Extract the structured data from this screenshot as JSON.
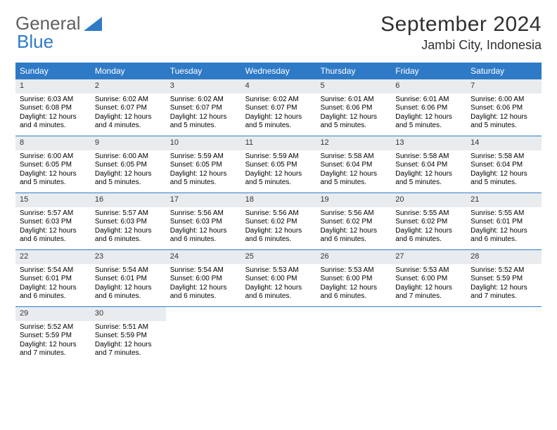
{
  "logo": {
    "text1": "General",
    "text2": "Blue"
  },
  "header": {
    "month": "September 2024",
    "location": "Jambi City, Indonesia"
  },
  "colors": {
    "accent": "#2f7ac6",
    "header_bg": "#2f7ac6",
    "num_bg": "#e9ecef",
    "text": "#000000"
  },
  "columns": [
    "Sunday",
    "Monday",
    "Tuesday",
    "Wednesday",
    "Thursday",
    "Friday",
    "Saturday"
  ],
  "weeks": [
    [
      {
        "n": "1",
        "sr": "Sunrise: 6:03 AM",
        "ss": "Sunset: 6:08 PM",
        "d1": "Daylight: 12 hours",
        "d2": "and 4 minutes."
      },
      {
        "n": "2",
        "sr": "Sunrise: 6:02 AM",
        "ss": "Sunset: 6:07 PM",
        "d1": "Daylight: 12 hours",
        "d2": "and 4 minutes."
      },
      {
        "n": "3",
        "sr": "Sunrise: 6:02 AM",
        "ss": "Sunset: 6:07 PM",
        "d1": "Daylight: 12 hours",
        "d2": "and 5 minutes."
      },
      {
        "n": "4",
        "sr": "Sunrise: 6:02 AM",
        "ss": "Sunset: 6:07 PM",
        "d1": "Daylight: 12 hours",
        "d2": "and 5 minutes."
      },
      {
        "n": "5",
        "sr": "Sunrise: 6:01 AM",
        "ss": "Sunset: 6:06 PM",
        "d1": "Daylight: 12 hours",
        "d2": "and 5 minutes."
      },
      {
        "n": "6",
        "sr": "Sunrise: 6:01 AM",
        "ss": "Sunset: 6:06 PM",
        "d1": "Daylight: 12 hours",
        "d2": "and 5 minutes."
      },
      {
        "n": "7",
        "sr": "Sunrise: 6:00 AM",
        "ss": "Sunset: 6:06 PM",
        "d1": "Daylight: 12 hours",
        "d2": "and 5 minutes."
      }
    ],
    [
      {
        "n": "8",
        "sr": "Sunrise: 6:00 AM",
        "ss": "Sunset: 6:05 PM",
        "d1": "Daylight: 12 hours",
        "d2": "and 5 minutes."
      },
      {
        "n": "9",
        "sr": "Sunrise: 6:00 AM",
        "ss": "Sunset: 6:05 PM",
        "d1": "Daylight: 12 hours",
        "d2": "and 5 minutes."
      },
      {
        "n": "10",
        "sr": "Sunrise: 5:59 AM",
        "ss": "Sunset: 6:05 PM",
        "d1": "Daylight: 12 hours",
        "d2": "and 5 minutes."
      },
      {
        "n": "11",
        "sr": "Sunrise: 5:59 AM",
        "ss": "Sunset: 6:05 PM",
        "d1": "Daylight: 12 hours",
        "d2": "and 5 minutes."
      },
      {
        "n": "12",
        "sr": "Sunrise: 5:58 AM",
        "ss": "Sunset: 6:04 PM",
        "d1": "Daylight: 12 hours",
        "d2": "and 5 minutes."
      },
      {
        "n": "13",
        "sr": "Sunrise: 5:58 AM",
        "ss": "Sunset: 6:04 PM",
        "d1": "Daylight: 12 hours",
        "d2": "and 5 minutes."
      },
      {
        "n": "14",
        "sr": "Sunrise: 5:58 AM",
        "ss": "Sunset: 6:04 PM",
        "d1": "Daylight: 12 hours",
        "d2": "and 5 minutes."
      }
    ],
    [
      {
        "n": "15",
        "sr": "Sunrise: 5:57 AM",
        "ss": "Sunset: 6:03 PM",
        "d1": "Daylight: 12 hours",
        "d2": "and 6 minutes."
      },
      {
        "n": "16",
        "sr": "Sunrise: 5:57 AM",
        "ss": "Sunset: 6:03 PM",
        "d1": "Daylight: 12 hours",
        "d2": "and 6 minutes."
      },
      {
        "n": "17",
        "sr": "Sunrise: 5:56 AM",
        "ss": "Sunset: 6:03 PM",
        "d1": "Daylight: 12 hours",
        "d2": "and 6 minutes."
      },
      {
        "n": "18",
        "sr": "Sunrise: 5:56 AM",
        "ss": "Sunset: 6:02 PM",
        "d1": "Daylight: 12 hours",
        "d2": "and 6 minutes."
      },
      {
        "n": "19",
        "sr": "Sunrise: 5:56 AM",
        "ss": "Sunset: 6:02 PM",
        "d1": "Daylight: 12 hours",
        "d2": "and 6 minutes."
      },
      {
        "n": "20",
        "sr": "Sunrise: 5:55 AM",
        "ss": "Sunset: 6:02 PM",
        "d1": "Daylight: 12 hours",
        "d2": "and 6 minutes."
      },
      {
        "n": "21",
        "sr": "Sunrise: 5:55 AM",
        "ss": "Sunset: 6:01 PM",
        "d1": "Daylight: 12 hours",
        "d2": "and 6 minutes."
      }
    ],
    [
      {
        "n": "22",
        "sr": "Sunrise: 5:54 AM",
        "ss": "Sunset: 6:01 PM",
        "d1": "Daylight: 12 hours",
        "d2": "and 6 minutes."
      },
      {
        "n": "23",
        "sr": "Sunrise: 5:54 AM",
        "ss": "Sunset: 6:01 PM",
        "d1": "Daylight: 12 hours",
        "d2": "and 6 minutes."
      },
      {
        "n": "24",
        "sr": "Sunrise: 5:54 AM",
        "ss": "Sunset: 6:00 PM",
        "d1": "Daylight: 12 hours",
        "d2": "and 6 minutes."
      },
      {
        "n": "25",
        "sr": "Sunrise: 5:53 AM",
        "ss": "Sunset: 6:00 PM",
        "d1": "Daylight: 12 hours",
        "d2": "and 6 minutes."
      },
      {
        "n": "26",
        "sr": "Sunrise: 5:53 AM",
        "ss": "Sunset: 6:00 PM",
        "d1": "Daylight: 12 hours",
        "d2": "and 6 minutes."
      },
      {
        "n": "27",
        "sr": "Sunrise: 5:53 AM",
        "ss": "Sunset: 6:00 PM",
        "d1": "Daylight: 12 hours",
        "d2": "and 7 minutes."
      },
      {
        "n": "28",
        "sr": "Sunrise: 5:52 AM",
        "ss": "Sunset: 5:59 PM",
        "d1": "Daylight: 12 hours",
        "d2": "and 7 minutes."
      }
    ],
    [
      {
        "n": "29",
        "sr": "Sunrise: 5:52 AM",
        "ss": "Sunset: 5:59 PM",
        "d1": "Daylight: 12 hours",
        "d2": "and 7 minutes."
      },
      {
        "n": "30",
        "sr": "Sunrise: 5:51 AM",
        "ss": "Sunset: 5:59 PM",
        "d1": "Daylight: 12 hours",
        "d2": "and 7 minutes."
      },
      null,
      null,
      null,
      null,
      null
    ]
  ]
}
